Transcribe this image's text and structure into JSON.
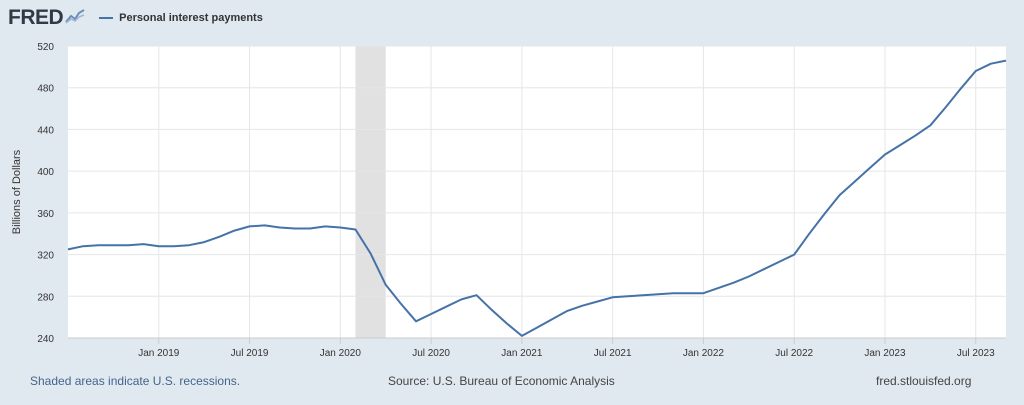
{
  "header": {
    "logo_text": "FRED",
    "logo_icon": "fred-chart-logo-icon",
    "legend_label": "Personal interest payments",
    "legend_color": "#4572a7"
  },
  "chart_data": {
    "type": "line",
    "ylabel": "Billions of Dollars",
    "ylim": [
      240,
      520
    ],
    "yticks": [
      240,
      280,
      320,
      360,
      400,
      440,
      480,
      520
    ],
    "xlim": [
      "2018-07",
      "2023-09"
    ],
    "xticks": [
      {
        "date": "2019-01",
        "label": "Jan 2019"
      },
      {
        "date": "2019-07",
        "label": "Jul 2019"
      },
      {
        "date": "2020-01",
        "label": "Jan 2020"
      },
      {
        "date": "2020-07",
        "label": "Jul 2020"
      },
      {
        "date": "2021-01",
        "label": "Jan 2021"
      },
      {
        "date": "2021-07",
        "label": "Jul 2021"
      },
      {
        "date": "2022-01",
        "label": "Jan 2022"
      },
      {
        "date": "2022-07",
        "label": "Jul 2022"
      },
      {
        "date": "2023-01",
        "label": "Jan 2023"
      },
      {
        "date": "2023-07",
        "label": "Jul 2023"
      }
    ],
    "recession": {
      "start": "2020-02",
      "end": "2020-04"
    },
    "grid": true,
    "series": [
      {
        "name": "Personal interest payments",
        "color": "#4572a7",
        "points": [
          [
            "2018-07",
            325
          ],
          [
            "2018-08",
            328
          ],
          [
            "2018-09",
            329
          ],
          [
            "2018-10",
            329
          ],
          [
            "2018-11",
            329
          ],
          [
            "2018-12",
            330
          ],
          [
            "2019-01",
            328
          ],
          [
            "2019-02",
            328
          ],
          [
            "2019-03",
            329
          ],
          [
            "2019-04",
            332
          ],
          [
            "2019-05",
            337
          ],
          [
            "2019-06",
            343
          ],
          [
            "2019-07",
            347
          ],
          [
            "2019-08",
            348
          ],
          [
            "2019-09",
            346
          ],
          [
            "2019-10",
            345
          ],
          [
            "2019-11",
            345
          ],
          [
            "2019-12",
            347
          ],
          [
            "2020-01",
            346
          ],
          [
            "2020-02",
            344
          ],
          [
            "2020-03",
            321
          ],
          [
            "2020-04",
            291
          ],
          [
            "2020-05",
            273
          ],
          [
            "2020-06",
            256
          ],
          [
            "2020-07",
            263
          ],
          [
            "2020-08",
            270
          ],
          [
            "2020-09",
            277
          ],
          [
            "2020-10",
            281
          ],
          [
            "2020-11",
            267
          ],
          [
            "2020-12",
            254
          ],
          [
            "2021-01",
            242
          ],
          [
            "2021-02",
            250
          ],
          [
            "2021-03",
            258
          ],
          [
            "2021-04",
            266
          ],
          [
            "2021-05",
            271
          ],
          [
            "2021-06",
            275
          ],
          [
            "2021-07",
            279
          ],
          [
            "2021-08",
            280
          ],
          [
            "2021-09",
            281
          ],
          [
            "2021-10",
            282
          ],
          [
            "2021-11",
            283
          ],
          [
            "2021-12",
            283
          ],
          [
            "2022-01",
            283
          ],
          [
            "2022-02",
            288
          ],
          [
            "2022-03",
            293
          ],
          [
            "2022-04",
            299
          ],
          [
            "2022-05",
            306
          ],
          [
            "2022-06",
            313
          ],
          [
            "2022-07",
            320
          ],
          [
            "2022-08",
            340
          ],
          [
            "2022-09",
            359
          ],
          [
            "2022-10",
            377
          ],
          [
            "2022-11",
            390
          ],
          [
            "2022-12",
            403
          ],
          [
            "2023-01",
            416
          ],
          [
            "2023-02",
            425
          ],
          [
            "2023-03",
            434
          ],
          [
            "2023-04",
            444
          ],
          [
            "2023-05",
            461
          ],
          [
            "2023-06",
            479
          ],
          [
            "2023-07",
            496
          ],
          [
            "2023-08",
            503
          ],
          [
            "2023-09",
            506
          ]
        ]
      }
    ]
  },
  "footer": {
    "left": "Shaded areas indicate U.S. recessions.",
    "middle": "Source: U.S. Bureau of Economic Analysis",
    "right": "fred.stlouisfed.org"
  }
}
